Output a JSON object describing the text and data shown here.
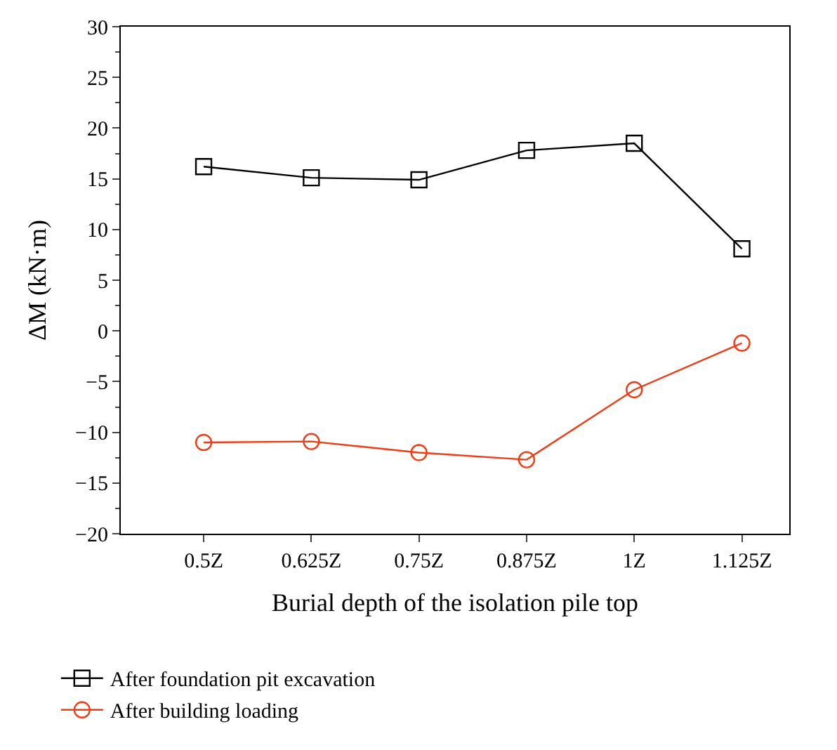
{
  "chart_data": {
    "type": "line",
    "xlabel": "Burial depth of the isolation pile top",
    "ylabel": "ΔM (kN·m)",
    "categories": [
      "0.5Z",
      "0.625Z",
      "0.75Z",
      "0.875Z",
      "1Z",
      "1.125Z"
    ],
    "series": [
      {
        "name": "After foundation pit excavation",
        "color": "#000000",
        "marker": "square",
        "values": [
          16.2,
          15.1,
          14.9,
          17.8,
          18.5,
          8.1
        ]
      },
      {
        "name": "After building loading",
        "color": "#f03c14",
        "marker": "circle",
        "values": [
          -11.0,
          -10.9,
          -12.0,
          -12.7,
          -5.8,
          -1.2
        ]
      }
    ],
    "ylim": [
      -20,
      30
    ],
    "yticks": [
      -20,
      -15,
      -10,
      -5,
      0,
      5,
      10,
      15,
      20,
      25,
      30
    ],
    "legend": "bottom",
    "line_style": "solid"
  }
}
